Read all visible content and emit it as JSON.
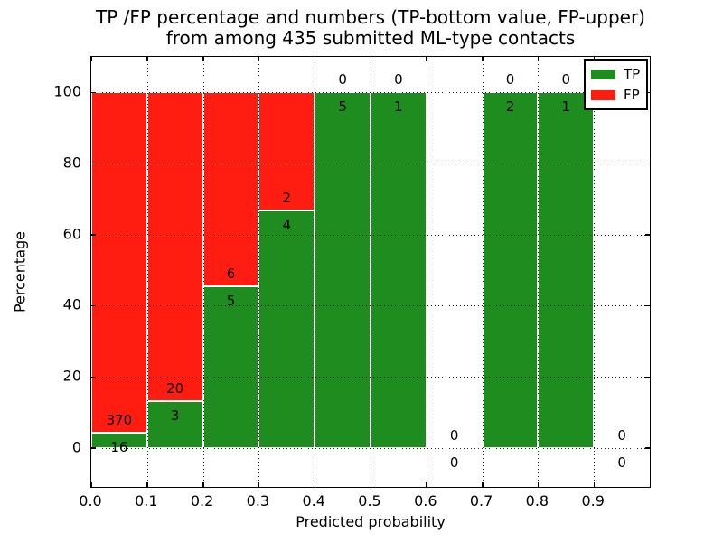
{
  "figure": {
    "title_line1": "TP /FP percentage and numbers (TP-bottom value, FP-upper)",
    "title_line2": "from among 435 submitted ML-type contacts"
  },
  "chart_data": {
    "type": "bar",
    "stacked": true,
    "normalized": "each bin's TP+FP stacked to 100%",
    "title": "TP /FP percentage and numbers (TP-bottom value, FP-upper) from among 435 submitted ML-type contacts",
    "xlabel": "Predicted probability",
    "ylabel": "Percentage",
    "xlim": [
      0.0,
      1.0
    ],
    "ylim": [
      -11,
      110
    ],
    "grid": "dotted, both axes, drawn over bars",
    "total_contacts": 435,
    "colors": {
      "tp": "#1e8c1e",
      "fp": "#ff1d12",
      "text": "#000000",
      "background": "#ffffff"
    },
    "yticks": [
      {
        "v": 0,
        "label": "0"
      },
      {
        "v": 20,
        "label": "20"
      },
      {
        "v": 40,
        "label": "40"
      },
      {
        "v": 60,
        "label": "60"
      },
      {
        "v": 80,
        "label": "80"
      },
      {
        "v": 100,
        "label": "100"
      }
    ],
    "xticks": [
      {
        "v": 0.0,
        "label": "0.0"
      },
      {
        "v": 0.1,
        "label": "0.1"
      },
      {
        "v": 0.2,
        "label": "0.2"
      },
      {
        "v": 0.3,
        "label": "0.3"
      },
      {
        "v": 0.4,
        "label": "0.4"
      },
      {
        "v": 0.5,
        "label": "0.5"
      },
      {
        "v": 0.6,
        "label": "0.6"
      },
      {
        "v": 0.7,
        "label": "0.7"
      },
      {
        "v": 0.8,
        "label": "0.8"
      },
      {
        "v": 0.9,
        "label": "0.9"
      }
    ],
    "bins": [
      {
        "x_range": [
          0.0,
          0.1
        ],
        "tp": 16,
        "fp": 370
      },
      {
        "x_range": [
          0.1,
          0.2
        ],
        "tp": 3,
        "fp": 20
      },
      {
        "x_range": [
          0.2,
          0.3
        ],
        "tp": 5,
        "fp": 6
      },
      {
        "x_range": [
          0.3,
          0.4
        ],
        "tp": 4,
        "fp": 2
      },
      {
        "x_range": [
          0.4,
          0.5
        ],
        "tp": 5,
        "fp": 0
      },
      {
        "x_range": [
          0.5,
          0.6
        ],
        "tp": 1,
        "fp": 0
      },
      {
        "x_range": [
          0.6,
          0.7
        ],
        "tp": 0,
        "fp": 0
      },
      {
        "x_range": [
          0.7,
          0.8
        ],
        "tp": 2,
        "fp": 0
      },
      {
        "x_range": [
          0.8,
          0.9
        ],
        "tp": 1,
        "fp": 0
      },
      {
        "x_range": [
          0.9,
          1.0
        ],
        "tp": 0,
        "fp": 0
      }
    ],
    "legend": {
      "position": "upper right",
      "entries": [
        {
          "label": "TP",
          "color": "#1e8c1e"
        },
        {
          "label": "FP",
          "color": "#ff1d12"
        }
      ]
    }
  }
}
